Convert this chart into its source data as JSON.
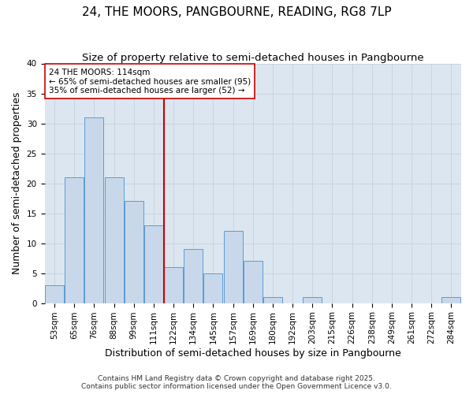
{
  "title": "24, THE MOORS, PANGBOURNE, READING, RG8 7LP",
  "subtitle": "Size of property relative to semi-detached houses in Pangbourne",
  "xlabel": "Distribution of semi-detached houses by size in Pangbourne",
  "ylabel": "Number of semi-detached properties",
  "categories": [
    "53sqm",
    "65sqm",
    "76sqm",
    "88sqm",
    "99sqm",
    "111sqm",
    "122sqm",
    "134sqm",
    "145sqm",
    "157sqm",
    "169sqm",
    "180sqm",
    "192sqm",
    "203sqm",
    "215sqm",
    "226sqm",
    "238sqm",
    "249sqm",
    "261sqm",
    "272sqm",
    "284sqm"
  ],
  "values": [
    3,
    21,
    31,
    21,
    17,
    13,
    6,
    9,
    5,
    12,
    7,
    1,
    0,
    1,
    0,
    0,
    0,
    0,
    0,
    0,
    1
  ],
  "bar_color": "#c8d8ea",
  "bar_edge_color": "#5b9bd5",
  "grid_color": "#c8d4e0",
  "plot_bg_color": "#dce6f0",
  "fig_bg_color": "#ffffff",
  "vline_x": 5.5,
  "vline_color": "#cc0000",
  "annotation_line1": "24 THE MOORS: 114sqm",
  "annotation_line2": "← 65% of semi-detached houses are smaller (95)",
  "annotation_line3": "35% of semi-detached houses are larger (52) →",
  "annotation_box_color": "#ffffff",
  "annotation_box_edge_color": "#cc0000",
  "ylim": [
    0,
    40
  ],
  "yticks": [
    0,
    5,
    10,
    15,
    20,
    25,
    30,
    35,
    40
  ],
  "footer": "Contains HM Land Registry data © Crown copyright and database right 2025.\nContains public sector information licensed under the Open Government Licence v3.0.",
  "title_fontsize": 11,
  "subtitle_fontsize": 9.5,
  "axis_label_fontsize": 9,
  "tick_fontsize": 7.5,
  "annotation_fontsize": 7.5,
  "footer_fontsize": 6.5
}
